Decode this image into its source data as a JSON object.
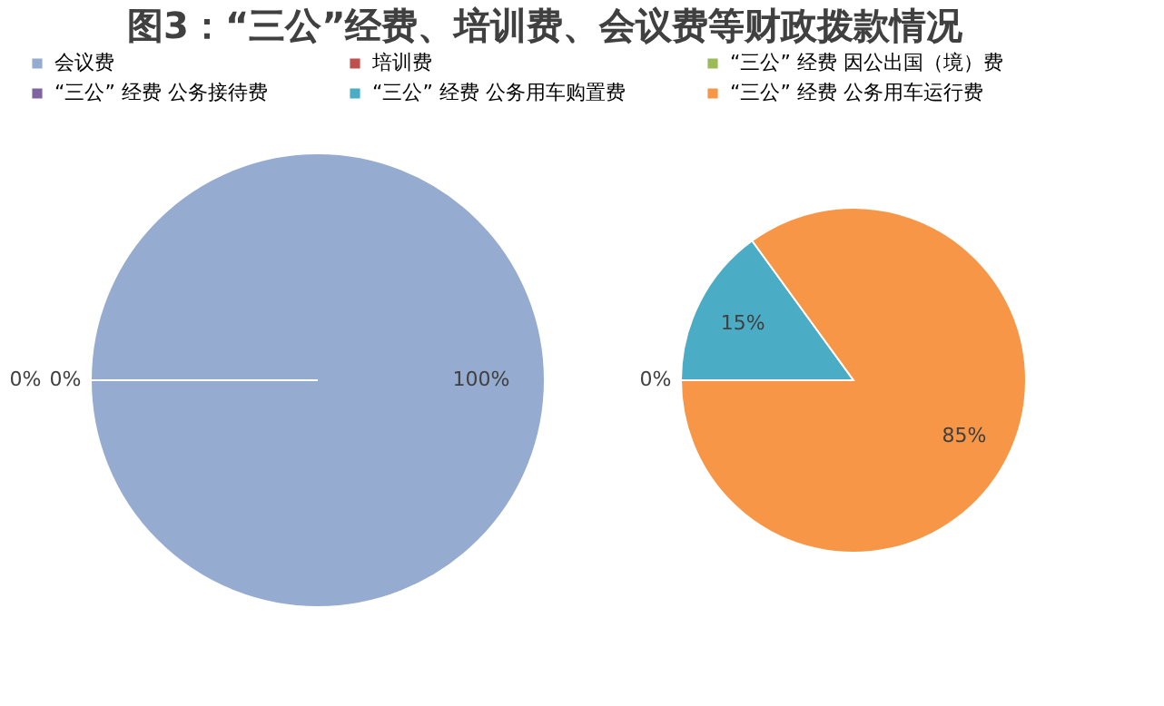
{
  "chart_data": [
    {
      "type": "pie",
      "title": "图3：“三公”经费、培训费、会议费等财政拨款情况",
      "categories": [
        "会议费",
        "培训费",
        "“三公” 经费 因公出国（境）费"
      ],
      "values": [
        100,
        0,
        0
      ],
      "colors": [
        "#95abd0",
        "#c0504d",
        "#9bbb59"
      ],
      "value_labels": [
        "100%",
        "0%",
        "0%"
      ],
      "legend": "top"
    },
    {
      "type": "pie",
      "categories": [
        "“三公” 经费 公务接待费",
        "“三公” 经费 公务用车购置费",
        "“三公” 经费 公务用车运行费"
      ],
      "values": [
        0,
        15,
        85
      ],
      "colors": [
        "#8064a2",
        "#4bacc6",
        "#f79646"
      ],
      "value_labels": [
        "0%",
        "15%",
        "85%"
      ],
      "legend": "top"
    }
  ]
}
